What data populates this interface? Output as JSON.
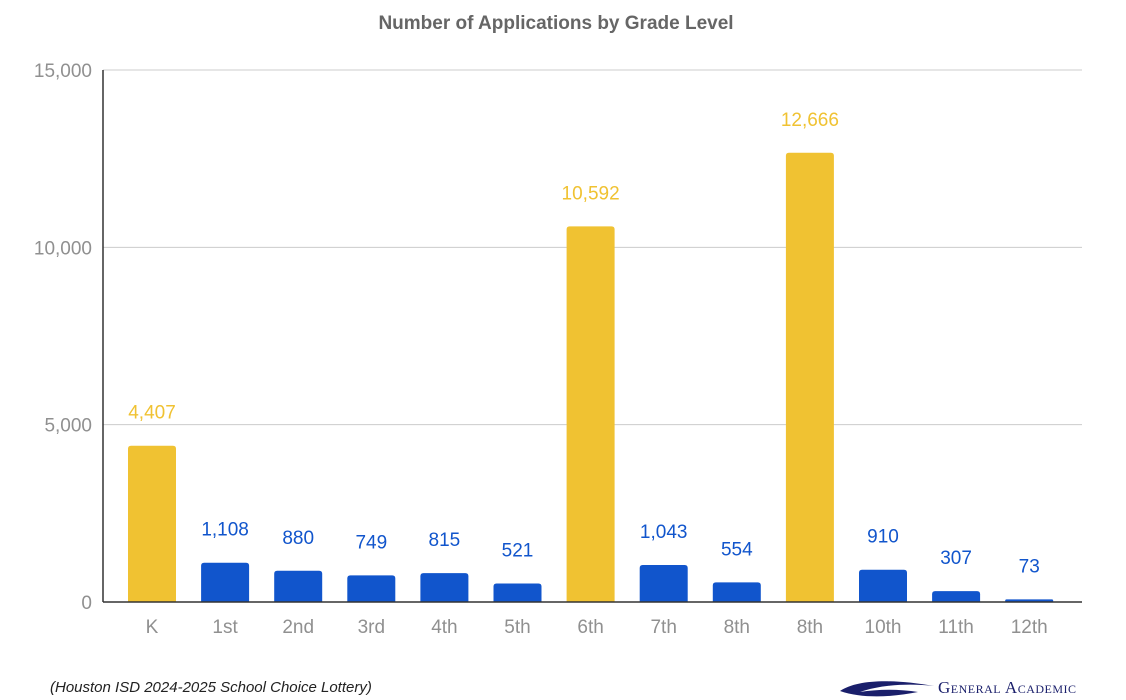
{
  "colors": {
    "highlight": "#F0C232",
    "regular": "#1155CC",
    "axis_text": "#909090",
    "title_text": "#666666",
    "brand": "#1a1f6b"
  },
  "chart_data": {
    "type": "bar",
    "title": "Number of Applications by Grade Level",
    "xlabel": "",
    "ylabel": "",
    "ylim": [
      0,
      15000
    ],
    "yticks": [
      0,
      5000,
      10000,
      15000
    ],
    "ytick_labels": [
      "0",
      "5,000",
      "10,000",
      "15,000"
    ],
    "grid": true,
    "legend": "none",
    "categories": [
      "K",
      "1st",
      "2nd",
      "3rd",
      "4th",
      "5th",
      "6th",
      "7th",
      "8th",
      "8th",
      "10th",
      "11th",
      "12th"
    ],
    "values": [
      4407,
      1108,
      880,
      749,
      815,
      521,
      10592,
      1043,
      554,
      12666,
      910,
      307,
      73
    ],
    "value_labels": [
      "4,407",
      "1,108",
      "880",
      "749",
      "815",
      "521",
      "10,592",
      "1,043",
      "554",
      "12,666",
      "910",
      "307",
      "73"
    ],
    "highlighted": [
      true,
      false,
      false,
      false,
      false,
      false,
      true,
      false,
      false,
      true,
      false,
      false,
      false
    ]
  },
  "footer": {
    "source_note": "(Houston ISD 2024-2025 School Choice Lottery)",
    "logo_text": "General Academic"
  }
}
